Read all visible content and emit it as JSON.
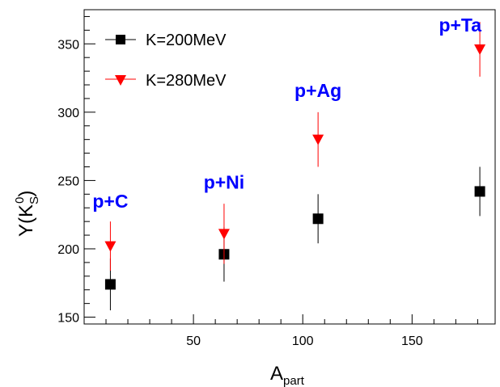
{
  "chart_data": {
    "type": "scatter",
    "xlabel": "A",
    "xlabel_sub": "part",
    "ylabel": "Y(K",
    "ylabel_sub": "S",
    "ylabel_sup": "0",
    "ylabel_close": ")",
    "xlim": [
      0,
      188
    ],
    "ylim": [
      145,
      375
    ],
    "x_ticks": [
      50,
      100,
      150
    ],
    "y_ticks": [
      150,
      200,
      250,
      300,
      350
    ],
    "grid": false,
    "legend_position": "top-left",
    "series": [
      {
        "name": "K=200MeV",
        "marker": "square",
        "color": "#000000",
        "points": [
          {
            "x": 12,
            "y": 174,
            "err": 19
          },
          {
            "x": 64,
            "y": 196,
            "err": 20
          },
          {
            "x": 107,
            "y": 222,
            "err": 18
          },
          {
            "x": 181,
            "y": 242,
            "err": 18
          }
        ]
      },
      {
        "name": "K=280MeV",
        "marker": "triangle-down",
        "color": "#ff0000",
        "points": [
          {
            "x": 12,
            "y": 202,
            "err": 18
          },
          {
            "x": 64,
            "y": 211,
            "err": 22
          },
          {
            "x": 107,
            "y": 280,
            "err": 20
          },
          {
            "x": 181,
            "y": 346,
            "err": 20
          }
        ]
      }
    ],
    "annotations": [
      {
        "text": "p+C",
        "x": 12,
        "y": 230
      },
      {
        "text": "p+Ni",
        "x": 64,
        "y": 244
      },
      {
        "text": "p+Ag",
        "x": 107,
        "y": 311
      },
      {
        "text": "p+Ta",
        "x": 172,
        "y": 359
      }
    ]
  }
}
